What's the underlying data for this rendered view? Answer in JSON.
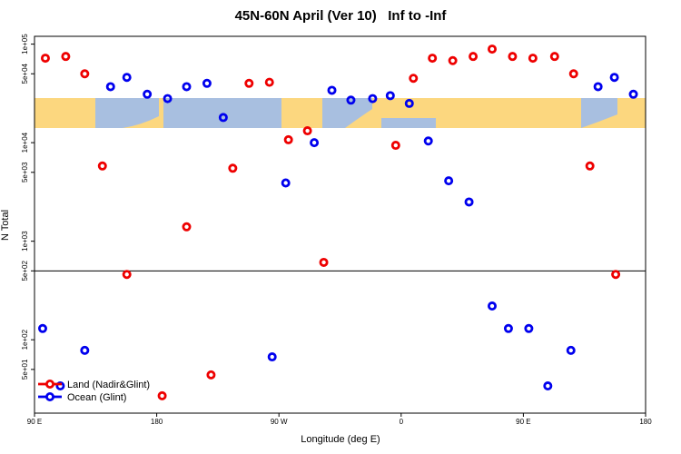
{
  "chart_data": {
    "type": "scatter",
    "title": "45N-60N April (Ver 10)   Inf to -Inf",
    "x_label": "Longitude (deg E)",
    "y_label": "N Total",
    "log_y": true,
    "legend": "bottom-left",
    "hline": 500,
    "xlim": [
      90,
      540
    ],
    "xticks": [
      {
        "value": 90,
        "label": "90 E"
      },
      180,
      {
        "value": 270,
        "label": "90 W"
      },
      {
        "value": 360,
        "label": "0"
      },
      {
        "value": 450,
        "label": "90 E"
      },
      {
        "value": 540,
        "label": "180"
      }
    ],
    "ylim": [
      18,
      120000
    ],
    "yticks": [
      {
        "value": 100000,
        "label": "1e+05"
      },
      {
        "value": 50000,
        "label": "5e+04"
      },
      {
        "value": 10000,
        "label": "1e+04"
      },
      {
        "value": 5000,
        "label": "5e+03"
      },
      {
        "value": 1000,
        "label": "1e+03"
      },
      {
        "value": 500,
        "label": "5e+02"
      },
      {
        "value": 100,
        "label": "1e+02"
      },
      {
        "value": 50,
        "label": "5e+01"
      }
    ],
    "series": [
      {
        "name": "Land (Nadir&Glint)",
        "color": "#ee0000",
        "x": [
          98,
          113,
          127,
          140,
          158,
          184,
          202,
          220,
          236,
          248,
          263,
          277,
          291,
          303,
          356,
          369,
          383,
          398,
          413,
          427,
          442,
          457,
          473,
          487,
          499,
          518
        ],
        "values": [
          72000,
          75000,
          50000,
          5800,
          460,
          27,
          1400,
          44,
          5500,
          40000,
          41000,
          10700,
          13200,
          610,
          9400,
          45000,
          72000,
          68000,
          75000,
          89000,
          75000,
          72000,
          75000,
          50000,
          5800,
          460
        ]
      },
      {
        "name": "Ocean (Glint)",
        "color": "#0000ee",
        "x": [
          96,
          109,
          127,
          146,
          158,
          173,
          188,
          202,
          217,
          229,
          265,
          275,
          296,
          309,
          323,
          339,
          352,
          366,
          380,
          395,
          410,
          427,
          439,
          454,
          468,
          485,
          505,
          517,
          531
        ],
        "values": [
          130,
          34,
          78,
          37000,
          46000,
          31000,
          28000,
          37000,
          40000,
          18000,
          67,
          3900,
          10000,
          34000,
          27000,
          28000,
          30000,
          25000,
          10400,
          4100,
          2500,
          220,
          130,
          130,
          34,
          78,
          37000,
          46000,
          31000
        ]
      }
    ]
  }
}
